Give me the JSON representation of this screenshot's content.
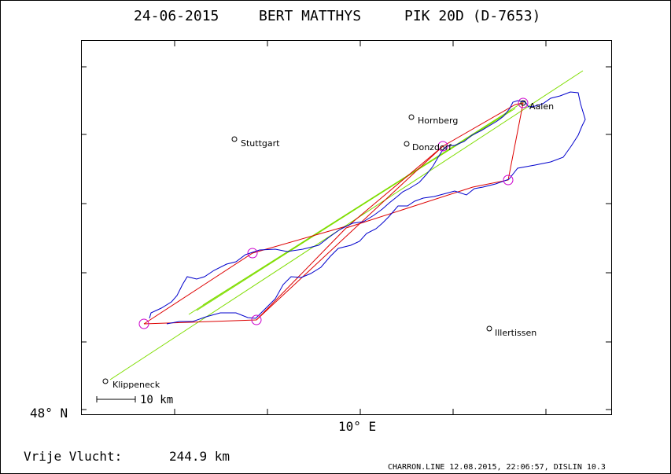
{
  "header": {
    "date": "24-06-2015",
    "pilot": "BERT MATTHYS",
    "glider": "PIK 20D (D-7653)"
  },
  "axes": {
    "lat_label": "48° N",
    "lon_label": "10° E"
  },
  "places": [
    {
      "name": "Hornberg"
    },
    {
      "name": "Stuttgart"
    },
    {
      "name": "Donzdorf"
    },
    {
      "name": "Aalen"
    },
    {
      "name": "Illertissen"
    },
    {
      "name": "Klippeneck"
    }
  ],
  "scale_bar": {
    "label": "10 km"
  },
  "footer": {
    "distance_label": "Vrije Vlucht:",
    "distance_value": "244.9 km",
    "program_info": "CHARRON.LINE 12.08.2015, 22:06:57, DISLIN 10.3"
  },
  "colors": {
    "track": "#0000cc",
    "task": "#dd0000",
    "turnpoint": "#cc00cc",
    "axis": "#000000",
    "tangent": "#7fdd00"
  }
}
